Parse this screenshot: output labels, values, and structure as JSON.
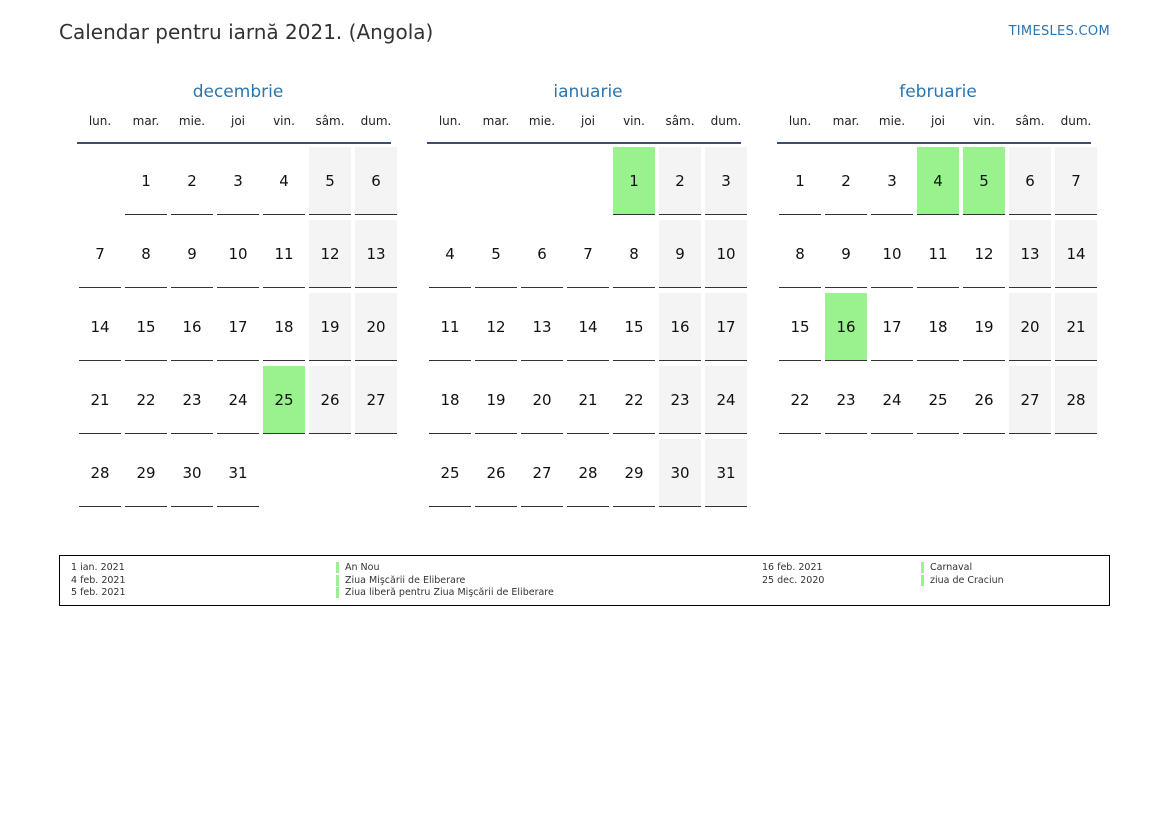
{
  "header": {
    "title": "Calendar pentru iarnă 2021. (Angola)",
    "site": "TIMESLES.COM"
  },
  "weekdays": [
    "lun.",
    "mar.",
    "mie.",
    "joi",
    "vin.",
    "sâm.",
    "dum."
  ],
  "months": [
    {
      "name": "decembrie",
      "weeks": [
        [
          "",
          "1",
          "2",
          "3",
          "4",
          "5",
          "6"
        ],
        [
          "7",
          "8",
          "9",
          "10",
          "11",
          "12",
          "13"
        ],
        [
          "14",
          "15",
          "16",
          "17",
          "18",
          "19",
          "20"
        ],
        [
          "21",
          "22",
          "23",
          "24",
          "25",
          "26",
          "27"
        ],
        [
          "28",
          "29",
          "30",
          "31",
          "",
          "",
          ""
        ]
      ],
      "holidays": [
        "25"
      ]
    },
    {
      "name": "ianuarie",
      "weeks": [
        [
          "",
          "",
          "",
          "",
          "1",
          "2",
          "3"
        ],
        [
          "4",
          "5",
          "6",
          "7",
          "8",
          "9",
          "10"
        ],
        [
          "11",
          "12",
          "13",
          "14",
          "15",
          "16",
          "17"
        ],
        [
          "18",
          "19",
          "20",
          "21",
          "22",
          "23",
          "24"
        ],
        [
          "25",
          "26",
          "27",
          "28",
          "29",
          "30",
          "31"
        ]
      ],
      "holidays": [
        "1"
      ]
    },
    {
      "name": "februarie",
      "weeks": [
        [
          "1",
          "2",
          "3",
          "4",
          "5",
          "6",
          "7"
        ],
        [
          "8",
          "9",
          "10",
          "11",
          "12",
          "13",
          "14"
        ],
        [
          "15",
          "16",
          "17",
          "18",
          "19",
          "20",
          "21"
        ],
        [
          "22",
          "23",
          "24",
          "25",
          "26",
          "27",
          "28"
        ]
      ],
      "holidays": [
        "4",
        "5",
        "16"
      ]
    }
  ],
  "legend": {
    "left": [
      {
        "date": "1 ian. 2021",
        "name": "An Nou"
      },
      {
        "date": "4 feb. 2021",
        "name": "Ziua Mişcării de Eliberare"
      },
      {
        "date": "5 feb. 2021",
        "name": "Ziua liberă pentru Ziua Mişcării de Eliberare"
      }
    ],
    "right": [
      {
        "date": "16 feb. 2021",
        "name": "Carnaval"
      },
      {
        "date": "25 dec. 2020",
        "name": "ziua de Craciun"
      }
    ]
  },
  "colors": {
    "accent": "#2a75b0",
    "holiday": "#99f28d",
    "weekend": "#f4f4f4"
  }
}
